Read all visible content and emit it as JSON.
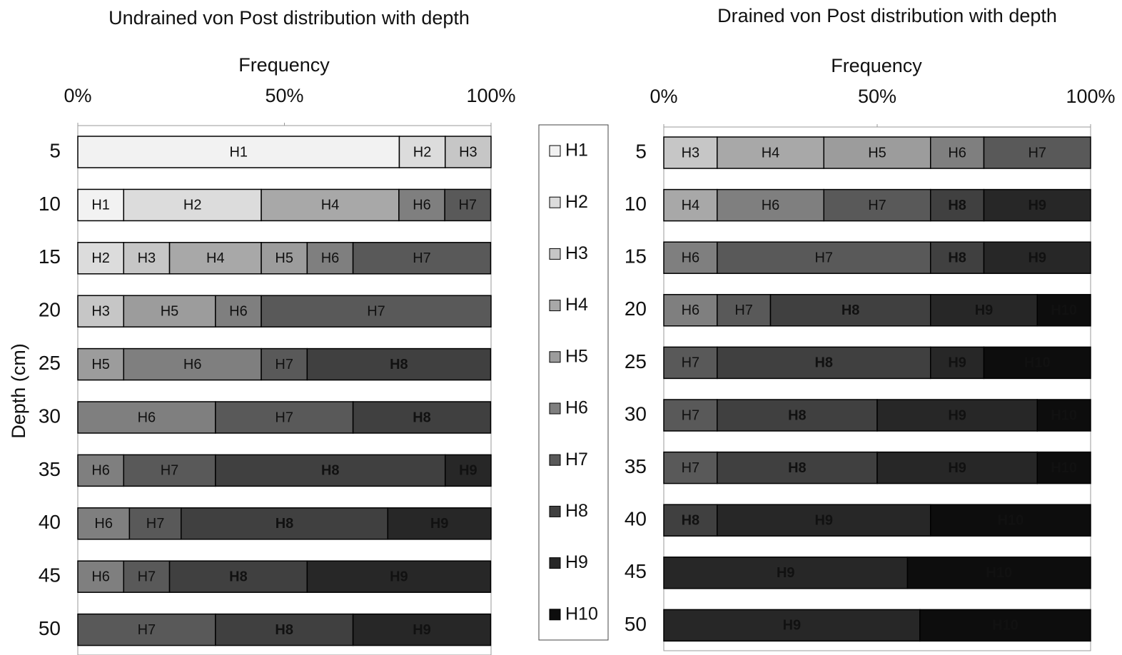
{
  "chart_data": [
    {
      "type": "stacked-bar-horizontal",
      "title": "Undrained von Post distribution with depth",
      "x_label": "Frequency",
      "y_label": "Depth (cm)",
      "categories": [
        "5",
        "10",
        "15",
        "20",
        "25",
        "30",
        "35",
        "40",
        "45",
        "50"
      ],
      "xlim": [
        0,
        100
      ],
      "xticks": [
        {
          "value": 0,
          "label": "0%"
        },
        {
          "value": 50,
          "label": "50%"
        },
        {
          "value": 100,
          "label": "100%"
        }
      ],
      "series": [
        {
          "name": "H1",
          "color": "#f2f2f2",
          "values": [
            77.8,
            11.1,
            null,
            null,
            null,
            null,
            null,
            null,
            null,
            null
          ]
        },
        {
          "name": "H2",
          "color": "#dcdcdc",
          "values": [
            11.1,
            33.3,
            11.1,
            null,
            null,
            null,
            null,
            null,
            null,
            null
          ]
        },
        {
          "name": "H3",
          "color": "#c6c6c6",
          "values": [
            11.1,
            null,
            11.1,
            11.1,
            null,
            null,
            null,
            null,
            null,
            null
          ]
        },
        {
          "name": "H4",
          "color": "#a8a8a8",
          "values": [
            null,
            33.3,
            22.2,
            null,
            null,
            null,
            null,
            null,
            null,
            null
          ]
        },
        {
          "name": "H5",
          "color": "#9c9c9c",
          "values": [
            null,
            null,
            11.1,
            22.2,
            11.1,
            null,
            null,
            null,
            null,
            null
          ]
        },
        {
          "name": "H6",
          "color": "#7f7f7f",
          "values": [
            null,
            11.1,
            11.1,
            11.1,
            33.3,
            33.3,
            11.1,
            12.5,
            11.1,
            null
          ]
        },
        {
          "name": "H7",
          "color": "#595959",
          "values": [
            null,
            11.1,
            33.3,
            55.6,
            11.1,
            33.3,
            22.2,
            12.5,
            11.1,
            33.3
          ]
        },
        {
          "name": "H8",
          "color": "#404040",
          "values": [
            null,
            null,
            null,
            null,
            44.4,
            33.3,
            55.6,
            50,
            33.3,
            33.3
          ]
        },
        {
          "name": "H9",
          "color": "#272727",
          "values": [
            null,
            null,
            null,
            null,
            null,
            null,
            11.1,
            25,
            44.4,
            33.3
          ]
        }
      ]
    },
    {
      "type": "stacked-bar-horizontal",
      "title": "Drained von Post distribution with depth",
      "x_label": "Frequency",
      "categories": [
        "5",
        "10",
        "15",
        "20",
        "25",
        "30",
        "35",
        "40",
        "45",
        "50"
      ],
      "xlim": [
        0,
        100
      ],
      "xticks": [
        {
          "value": 0,
          "label": "0%"
        },
        {
          "value": 50,
          "label": "50%"
        },
        {
          "value": 100,
          "label": "100%"
        }
      ],
      "series": [
        {
          "name": "H3",
          "color": "#c6c6c6",
          "values": [
            12.5,
            null,
            null,
            null,
            null,
            null,
            null,
            null,
            null,
            null
          ]
        },
        {
          "name": "H4",
          "color": "#a8a8a8",
          "values": [
            25,
            12.5,
            null,
            null,
            null,
            null,
            null,
            null,
            null,
            null
          ]
        },
        {
          "name": "H5",
          "color": "#9c9c9c",
          "values": [
            25,
            null,
            null,
            null,
            null,
            null,
            null,
            null,
            null,
            null
          ]
        },
        {
          "name": "H6",
          "color": "#7f7f7f",
          "values": [
            12.5,
            25,
            12.5,
            12.5,
            null,
            null,
            null,
            null,
            null,
            null
          ]
        },
        {
          "name": "H7",
          "color": "#595959",
          "values": [
            25,
            25,
            50,
            12.5,
            12.5,
            12.5,
            12.5,
            null,
            null,
            null
          ]
        },
        {
          "name": "H8",
          "color": "#404040",
          "values": [
            null,
            12.5,
            12.5,
            37.5,
            50,
            37.5,
            37.5,
            12.5,
            null,
            null
          ]
        },
        {
          "name": "H9",
          "color": "#272727",
          "values": [
            null,
            25,
            25,
            25,
            12.5,
            37.5,
            37.5,
            50,
            57.1,
            60
          ]
        },
        {
          "name": "H10",
          "color": "#0d0d0d",
          "values": [
            null,
            null,
            null,
            12.5,
            25,
            12.5,
            12.5,
            37.5,
            42.9,
            40
          ]
        }
      ]
    }
  ]
}
